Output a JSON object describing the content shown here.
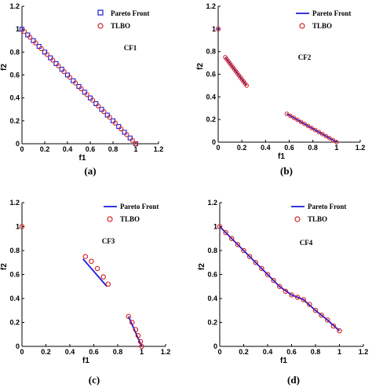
{
  "colors": {
    "pareto": "#1a1adc",
    "tlbo": "#d42020",
    "axis": "#000000"
  },
  "chart_data": [
    {
      "type": "scatter",
      "panel": "(a)",
      "title": "CF1",
      "xlabel": "f1",
      "ylabel": "f2",
      "xlim": [
        0,
        1.2
      ],
      "ylim": [
        0,
        1.2
      ],
      "xticks": [
        "0",
        "0.2",
        "0.4",
        "0.6",
        "0.8",
        "1",
        "1.2"
      ],
      "yticks": [
        "0",
        "0.2",
        "0.4",
        "0.6",
        "0.8",
        "1",
        "1.2"
      ],
      "legend": {
        "position": "top-right",
        "entries": [
          "Pareto Front",
          "TLBO"
        ]
      },
      "series": [
        {
          "name": "Pareto Front",
          "marker": "square",
          "x": [
            0,
            0.05,
            0.1,
            0.15,
            0.2,
            0.25,
            0.3,
            0.35,
            0.4,
            0.45,
            0.5,
            0.55,
            0.6,
            0.65,
            0.7,
            0.75,
            0.8,
            0.85,
            0.9,
            0.95,
            1.0
          ],
          "y": [
            1.0,
            0.95,
            0.9,
            0.85,
            0.8,
            0.75,
            0.7,
            0.65,
            0.6,
            0.55,
            0.5,
            0.45,
            0.4,
            0.35,
            0.3,
            0.25,
            0.2,
            0.15,
            0.1,
            0.05,
            0.0
          ]
        },
        {
          "name": "TLBO",
          "marker": "circle",
          "x": [
            0.02,
            0.07,
            0.12,
            0.17,
            0.22,
            0.27,
            0.32,
            0.37,
            0.42,
            0.47,
            0.52,
            0.57,
            0.62,
            0.67,
            0.72,
            0.77,
            0.82,
            0.87,
            0.92,
            0.97,
            1.0
          ],
          "y": [
            0.98,
            0.93,
            0.88,
            0.83,
            0.78,
            0.73,
            0.68,
            0.63,
            0.58,
            0.53,
            0.48,
            0.43,
            0.38,
            0.33,
            0.28,
            0.23,
            0.18,
            0.13,
            0.08,
            0.03,
            0.0
          ]
        }
      ]
    },
    {
      "type": "line",
      "panel": "(b)",
      "title": "CF2",
      "xlabel": "f1",
      "ylabel": "f2",
      "xlim": [
        0,
        1.2
      ],
      "ylim": [
        0,
        1.2
      ],
      "xticks": [
        "0",
        "0.2",
        "0.4",
        "0.6",
        "0.8",
        "1",
        "1.2"
      ],
      "yticks": [
        "0",
        "0.2",
        "0.4",
        "0.6",
        "0.8",
        "1",
        "1.2"
      ],
      "legend": {
        "position": "top-right",
        "entries": [
          "Pareto Front",
          "TLBO"
        ]
      },
      "series": [
        {
          "name": "Pareto Front",
          "segments": [
            [
              [
                0.0,
                1.0
              ]
            ],
            [
              [
                0.06,
                0.75
              ],
              [
                0.24,
                0.5
              ]
            ],
            [
              [
                0.58,
                0.25
              ],
              [
                1.0,
                0.0
              ]
            ]
          ]
        },
        {
          "name": "TLBO",
          "segments": [
            [
              [
                0.0,
                1.0
              ]
            ],
            [
              [
                0.06,
                0.75
              ],
              [
                0.24,
                0.5
              ]
            ],
            [
              [
                0.58,
                0.25
              ],
              [
                1.0,
                0.0
              ]
            ]
          ]
        }
      ]
    },
    {
      "type": "line",
      "panel": "(c)",
      "title": "CF3",
      "xlabel": "f1",
      "ylabel": "f2",
      "xlim": [
        0,
        1.2
      ],
      "ylim": [
        0,
        1.2
      ],
      "xticks": [
        "0",
        "0.2",
        "0.4",
        "0.6",
        "0.8",
        "1",
        "1.2"
      ],
      "yticks": [
        "0",
        "0.2",
        "0.4",
        "0.6",
        "0.8",
        "1",
        "1.2"
      ],
      "legend": {
        "position": "top-right",
        "entries": [
          "Pareto Front",
          "TLBO"
        ]
      },
      "series": [
        {
          "name": "Pareto Front",
          "segments": [
            [
              [
                0.51,
                0.73
              ],
              [
                0.71,
                0.5
              ]
            ],
            [
              [
                0.89,
                0.25
              ],
              [
                1.0,
                0.0
              ]
            ]
          ]
        },
        {
          "name": "TLBO",
          "points": [
            [
              0.0,
              1.0
            ],
            [
              0.53,
              0.75
            ],
            [
              0.58,
              0.71
            ],
            [
              0.63,
              0.65
            ],
            [
              0.68,
              0.58
            ],
            [
              0.72,
              0.52
            ],
            [
              0.89,
              0.25
            ],
            [
              0.92,
              0.2
            ],
            [
              0.95,
              0.14
            ],
            [
              0.97,
              0.09
            ],
            [
              0.99,
              0.04
            ],
            [
              1.0,
              0.0
            ]
          ]
        }
      ]
    },
    {
      "type": "line",
      "panel": "(d)",
      "title": "CF4",
      "xlabel": "f1",
      "ylabel": "f2",
      "xlim": [
        0,
        1.2
      ],
      "ylim": [
        0,
        1.2
      ],
      "xticks": [
        "0",
        "0.2",
        "0.4",
        "0.6",
        "0.8",
        "1",
        "1.2"
      ],
      "yticks": [
        "0",
        "0.2",
        "0.4",
        "0.6",
        "0.8",
        "1",
        "1.2"
      ],
      "legend": {
        "position": "top-right",
        "entries": [
          "Pareto Front",
          "TLBO"
        ]
      },
      "series": [
        {
          "name": "Pareto Front",
          "points": [
            [
              0.0,
              1.0
            ],
            [
              0.1,
              0.9
            ],
            [
              0.2,
              0.8
            ],
            [
              0.3,
              0.7
            ],
            [
              0.4,
              0.6
            ],
            [
              0.5,
              0.5
            ],
            [
              0.6,
              0.43
            ],
            [
              0.7,
              0.39
            ],
            [
              0.8,
              0.3
            ],
            [
              0.9,
              0.22
            ],
            [
              1.0,
              0.13
            ]
          ]
        },
        {
          "name": "TLBO",
          "points": [
            [
              0.0,
              1.0
            ],
            [
              0.05,
              0.95
            ],
            [
              0.1,
              0.9
            ],
            [
              0.15,
              0.85
            ],
            [
              0.2,
              0.8
            ],
            [
              0.25,
              0.75
            ],
            [
              0.3,
              0.7
            ],
            [
              0.35,
              0.65
            ],
            [
              0.4,
              0.6
            ],
            [
              0.45,
              0.55
            ],
            [
              0.5,
              0.5
            ],
            [
              0.55,
              0.46
            ],
            [
              0.6,
              0.43
            ],
            [
              0.65,
              0.41
            ],
            [
              0.7,
              0.39
            ],
            [
              0.75,
              0.35
            ],
            [
              0.8,
              0.3
            ],
            [
              0.85,
              0.26
            ],
            [
              0.9,
              0.22
            ],
            [
              0.95,
              0.17
            ],
            [
              1.0,
              0.13
            ]
          ]
        }
      ]
    }
  ]
}
